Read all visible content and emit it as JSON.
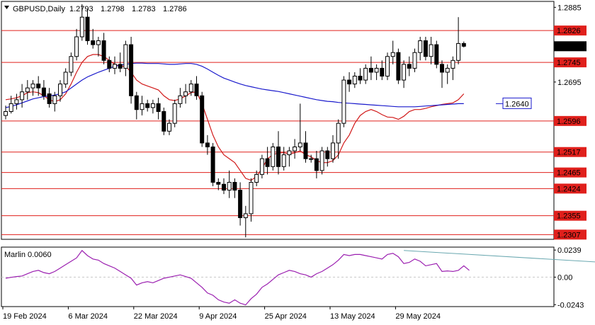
{
  "chart_data": [
    {
      "type": "candlestick",
      "title": "GBPUSD,Daily",
      "ohlc_header": {
        "open": "1.2793",
        "high": "1.2798",
        "low": "1.2783",
        "close": "1.2786"
      },
      "current_price_label": "1.2786",
      "ylim": [
        1.2295,
        1.29
      ],
      "y_ticks": [
        "1.2885",
        "1.2695"
      ],
      "x_labels": [
        "19 Feb 2024",
        "6 Mar 2024",
        "22 Mar 2024",
        "9 Apr 2024",
        "25 Apr 2024",
        "13 May 2024",
        "29 May 2024"
      ],
      "horizontal_levels": [
        1.2826,
        1.2745,
        1.2596,
        1.2517,
        1.2465,
        1.2424,
        1.2355,
        1.2307
      ],
      "ma_label": "1.2640",
      "candles": [
        [
          1.261,
          1.2635,
          1.26,
          1.262
        ],
        [
          1.262,
          1.266,
          1.2615,
          1.264
        ],
        [
          1.264,
          1.2665,
          1.2625,
          1.265
        ],
        [
          1.265,
          1.269,
          1.263,
          1.267
        ],
        [
          1.267,
          1.27,
          1.265,
          1.268
        ],
        [
          1.268,
          1.27,
          1.266,
          1.269
        ],
        [
          1.269,
          1.271,
          1.266,
          1.268
        ],
        [
          1.268,
          1.27,
          1.265,
          1.266
        ],
        [
          1.2665,
          1.268,
          1.263,
          1.264
        ],
        [
          1.264,
          1.267,
          1.262,
          1.266
        ],
        [
          1.266,
          1.27,
          1.2645,
          1.269
        ],
        [
          1.269,
          1.273,
          1.268,
          1.272
        ],
        [
          1.272,
          1.277,
          1.271,
          1.276
        ],
        [
          1.276,
          1.283,
          1.275,
          1.281
        ],
        [
          1.281,
          1.2893,
          1.28,
          1.286
        ],
        [
          1.286,
          1.288,
          1.279,
          1.28
        ],
        [
          1.28,
          1.283,
          1.278,
          1.279
        ],
        [
          1.279,
          1.281,
          1.276,
          1.28
        ],
        [
          1.28,
          1.282,
          1.274,
          1.275
        ],
        [
          1.275,
          1.276,
          1.272,
          1.273
        ],
        [
          1.273,
          1.276,
          1.2715,
          1.274
        ],
        [
          1.274,
          1.277,
          1.272,
          1.273
        ],
        [
          1.273,
          1.28,
          1.271,
          1.279
        ],
        [
          1.279,
          1.281,
          1.264,
          1.266
        ],
        [
          1.266,
          1.267,
          1.26,
          1.2625
        ],
        [
          1.2625,
          1.266,
          1.261,
          1.264
        ],
        [
          1.264,
          1.265,
          1.262,
          1.263
        ],
        [
          1.263,
          1.265,
          1.2615,
          1.264
        ],
        [
          1.264,
          1.2655,
          1.26,
          1.262
        ],
        [
          1.262,
          1.263,
          1.256,
          1.257
        ],
        [
          1.257,
          1.26,
          1.256,
          1.259
        ],
        [
          1.259,
          1.265,
          1.258,
          1.264
        ],
        [
          1.264,
          1.268,
          1.263,
          1.266
        ],
        [
          1.266,
          1.269,
          1.264,
          1.267
        ],
        [
          1.267,
          1.27,
          1.266,
          1.269
        ],
        [
          1.269,
          1.271,
          1.265,
          1.266
        ],
        [
          1.266,
          1.267,
          1.253,
          1.254
        ],
        [
          1.254,
          1.256,
          1.251,
          1.253
        ],
        [
          1.253,
          1.254,
          1.243,
          1.244
        ],
        [
          1.244,
          1.245,
          1.242,
          1.2435
        ],
        [
          1.2435,
          1.245,
          1.241,
          1.242
        ],
        [
          1.242,
          1.247,
          1.24,
          1.244
        ],
        [
          1.244,
          1.245,
          1.24,
          1.242
        ],
        [
          1.242,
          1.244,
          1.233,
          1.235
        ],
        [
          1.235,
          1.238,
          1.23,
          1.236
        ],
        [
          1.236,
          1.245,
          1.234,
          1.244
        ],
        [
          1.244,
          1.247,
          1.243,
          1.246
        ],
        [
          1.246,
          1.251,
          1.245,
          1.25
        ],
        [
          1.25,
          1.253,
          1.246,
          1.248
        ],
        [
          1.248,
          1.254,
          1.247,
          1.253
        ],
        [
          1.253,
          1.257,
          1.246,
          1.248
        ],
        [
          1.248,
          1.253,
          1.247,
          1.251
        ],
        [
          1.251,
          1.253,
          1.248,
          1.252
        ],
        [
          1.252,
          1.255,
          1.25,
          1.253
        ],
        [
          1.253,
          1.264,
          1.252,
          1.254
        ],
        [
          1.254,
          1.257,
          1.249,
          1.25
        ],
        [
          1.25,
          1.251,
          1.249,
          1.25
        ],
        [
          1.25,
          1.252,
          1.245,
          1.247
        ],
        [
          1.247,
          1.253,
          1.246,
          1.252
        ],
        [
          1.252,
          1.253,
          1.248,
          1.25
        ],
        [
          1.25,
          1.256,
          1.249,
          1.254
        ],
        [
          1.254,
          1.26,
          1.25,
          1.259
        ],
        [
          1.259,
          1.271,
          1.258,
          1.27
        ],
        [
          1.27,
          1.272,
          1.267,
          1.269
        ],
        [
          1.269,
          1.272,
          1.268,
          1.271
        ],
        [
          1.271,
          1.273,
          1.269,
          1.27
        ],
        [
          1.27,
          1.274,
          1.269,
          1.273
        ],
        [
          1.273,
          1.276,
          1.27,
          1.272
        ],
        [
          1.272,
          1.274,
          1.27,
          1.273
        ],
        [
          1.273,
          1.275,
          1.27,
          1.271
        ],
        [
          1.271,
          1.277,
          1.27,
          1.276
        ],
        [
          1.276,
          1.28,
          1.274,
          1.277
        ],
        [
          1.277,
          1.278,
          1.269,
          1.27
        ],
        [
          1.27,
          1.275,
          1.268,
          1.274
        ],
        [
          1.274,
          1.276,
          1.271,
          1.273
        ],
        [
          1.273,
          1.278,
          1.272,
          1.277
        ],
        [
          1.277,
          1.281,
          1.275,
          1.28
        ],
        [
          1.28,
          1.281,
          1.275,
          1.276
        ],
        [
          1.276,
          1.281,
          1.274,
          1.279
        ],
        [
          1.279,
          1.28,
          1.273,
          1.274
        ],
        [
          1.274,
          1.275,
          1.268,
          1.272
        ],
        [
          1.272,
          1.274,
          1.269,
          1.273
        ],
        [
          1.273,
          1.276,
          1.27,
          1.275
        ],
        [
          1.275,
          1.286,
          1.274,
          1.2793
        ],
        [
          1.2793,
          1.2798,
          1.2783,
          1.2786
        ]
      ],
      "series": [
        {
          "color": "#d11a1a",
          "values": [
            1.265,
            1.2652,
            1.2655,
            1.266,
            1.2668,
            1.267,
            1.2668,
            1.266,
            1.265,
            1.2645,
            1.265,
            1.2665,
            1.269,
            1.272,
            1.2745,
            1.276,
            1.2765,
            1.2765,
            1.276,
            1.275,
            1.274,
            1.2735,
            1.2735,
            1.272,
            1.27,
            1.269,
            1.2685,
            1.268,
            1.2675,
            1.266,
            1.265,
            1.2648,
            1.2652,
            1.266,
            1.2668,
            1.267,
            1.264,
            1.26,
            1.256,
            1.253,
            1.251,
            1.25,
            1.249,
            1.247,
            1.245,
            1.2445,
            1.2455,
            1.2475,
            1.25,
            1.251,
            1.2515,
            1.2515,
            1.2512,
            1.2515,
            1.252,
            1.251,
            1.2505,
            1.2495,
            1.249,
            1.249,
            1.2495,
            1.251,
            1.254,
            1.256,
            1.259,
            1.261,
            1.262,
            1.2625,
            1.262,
            1.2612,
            1.2606,
            1.2605,
            1.26,
            1.2608,
            1.262,
            1.2625,
            1.2625,
            1.2628,
            1.2632,
            1.2635,
            1.2638,
            1.264,
            1.2642,
            1.265,
            1.2665
          ]
        },
        {
          "color": "#1a1acc",
          "values": [
            1.263,
            1.2633,
            1.2637,
            1.2642,
            1.2647,
            1.2652,
            1.2655,
            1.2658,
            1.266,
            1.2662,
            1.2665,
            1.267,
            1.268,
            1.269,
            1.27,
            1.2708,
            1.2714,
            1.272,
            1.2725,
            1.273,
            1.2735,
            1.2738,
            1.274,
            1.2742,
            1.2743,
            1.2743,
            1.2742,
            1.2742,
            1.2742,
            1.2741,
            1.274,
            1.274,
            1.2741,
            1.2742,
            1.2742,
            1.274,
            1.2735,
            1.2728,
            1.272,
            1.2712,
            1.2705,
            1.27,
            1.2695,
            1.269,
            1.2686,
            1.2683,
            1.268,
            1.2677,
            1.2675,
            1.2673,
            1.2671,
            1.2668,
            1.2665,
            1.2662,
            1.2659,
            1.2656,
            1.2653,
            1.265,
            1.2648,
            1.2646,
            1.2645,
            1.2643,
            1.2642,
            1.2641,
            1.264,
            1.2639,
            1.2638,
            1.2637,
            1.2636,
            1.2635,
            1.2634,
            1.2633,
            1.2632,
            1.2632,
            1.2632,
            1.2632,
            1.2633,
            1.2634,
            1.2635,
            1.2636,
            1.2637,
            1.2638,
            1.2639,
            1.264,
            1.264
          ]
        }
      ]
    },
    {
      "type": "line",
      "title": "Marlin 0.0060",
      "ylim": [
        -0.026,
        0.0265
      ],
      "y_ticks": [
        "0.0239",
        "0.00",
        "-0.0243"
      ],
      "series": [
        {
          "color": "#9b1fb0",
          "values": [
            -0.001,
            -0.0002,
            0.0005,
            0.001,
            0.003,
            0.005,
            0.006,
            0.004,
            0.003,
            0.005,
            0.008,
            0.011,
            0.014,
            0.017,
            0.0235,
            0.019,
            0.016,
            0.015,
            0.012,
            0.01,
            0.008,
            0.005,
            0.002,
            -0.001,
            -0.007,
            -0.005,
            -0.004,
            -0.005,
            -0.003,
            -0.001,
            0.0,
            0.001,
            0.002,
            0.0005,
            -0.001,
            -0.005,
            -0.009,
            -0.014,
            -0.016,
            -0.02,
            -0.022,
            -0.023,
            -0.02,
            -0.023,
            -0.0245,
            -0.019,
            -0.015,
            -0.009,
            -0.006,
            -0.002,
            0.002,
            0.004,
            0.006,
            0.005,
            0.003,
            0.002,
            0.0,
            0.003,
            0.005,
            0.008,
            0.011,
            0.015,
            0.02,
            0.019,
            0.02,
            0.02,
            0.019,
            0.018,
            0.017,
            0.016,
            0.02,
            0.021,
            0.018,
            0.012,
            0.013,
            0.016,
            0.014,
            0.01,
            0.011,
            0.012,
            0.005,
            0.0055,
            0.005,
            0.006,
            0.01,
            0.006
          ]
        },
        {
          "color": "#6aa8b0",
          "points": [
            [
              73,
              0.0235
            ],
            [
              120,
              0.01
            ]
          ]
        }
      ]
    }
  ]
}
